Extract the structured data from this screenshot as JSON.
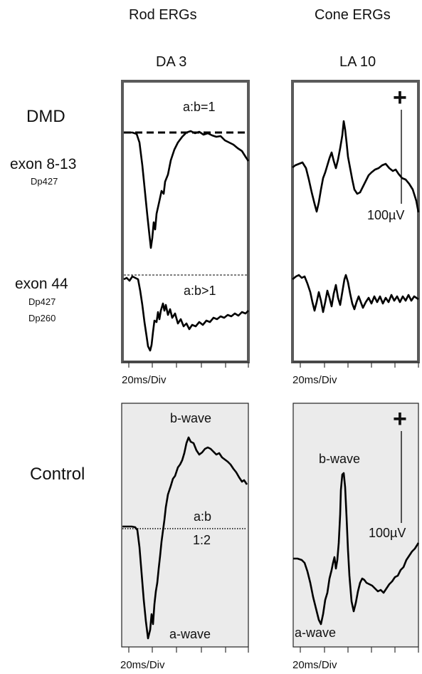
{
  "columns": {
    "rod_title": "Rod ERGs",
    "cone_title": "Cone ERGs",
    "rod_protocol": "DA 3",
    "cone_protocol": "LA 10"
  },
  "rows": {
    "dmd_label": "DMD",
    "exon1_label": "exon 8-13",
    "exon1_isoform": "Dp427",
    "exon2_label": "exon 44",
    "exon2_isoform1": "Dp427",
    "exon2_isoform2": "Dp260",
    "control_label": "Control"
  },
  "annotations": {
    "ratio_exon1": "a:b=1",
    "ratio_exon2": "a:b>1",
    "ratio_control_top": "a:b",
    "ratio_control_bottom": "1:2",
    "b_wave": "b-wave",
    "a_wave": "a-wave",
    "scale_plus": "+",
    "scale_value": "100µV",
    "time_base": "20ms/Div"
  },
  "colors": {
    "panel_border": "#5a5a5a",
    "control_fill": "#ebebeb",
    "trace": "#000000"
  }
}
